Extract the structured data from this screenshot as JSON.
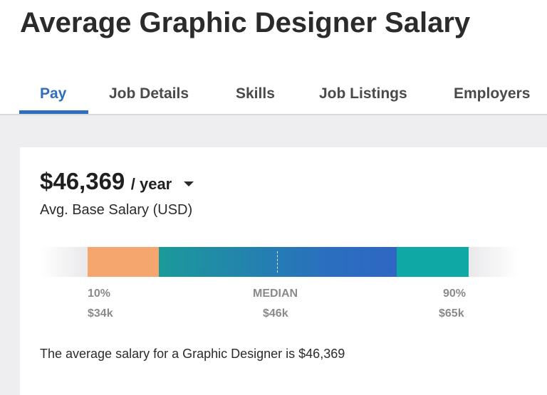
{
  "page": {
    "title": "Average Graphic Designer Salary"
  },
  "tabs": [
    {
      "label": "Pay",
      "active": true
    },
    {
      "label": "Job Details",
      "active": false
    },
    {
      "label": "Skills",
      "active": false
    },
    {
      "label": "Job Listings",
      "active": false
    },
    {
      "label": "Employers",
      "active": false
    }
  ],
  "salary": {
    "amount": "$46,369",
    "period": "/ year",
    "caption": "Avg. Base Salary (USD)",
    "range": {
      "low_percentile": "10%",
      "low_value": "$34k",
      "median_label": "MEDIAN",
      "median_value": "$46k",
      "high_percentile": "90%",
      "high_value": "$65k"
    },
    "summary": "The average salary for a Graphic Designer is $46,369"
  },
  "colors": {
    "accent": "#2f6dbf",
    "low_segment": "#f5a66f",
    "mid_segment": "#1b9a9a",
    "high_segment": "#10a8a4"
  }
}
